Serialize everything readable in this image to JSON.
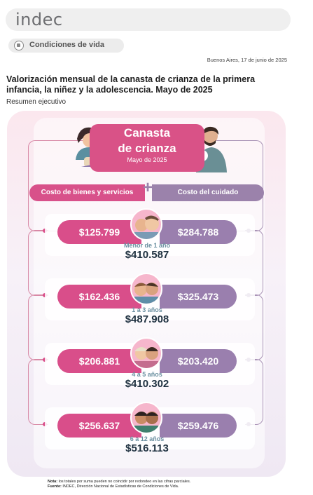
{
  "header": {
    "logo": "indec"
  },
  "section": {
    "label": "Condiciones de vida",
    "icon": "document-icon"
  },
  "date": "Buenos Aires, 17 de junio de 2025",
  "title": "Valorización mensual de la canasta de crianza de la primera infancia, la niñez y la adolescencia. Mayo de 2025",
  "subtitle": "Resumen ejecutivo",
  "infographic": {
    "heading_line1": "Canasta",
    "heading_line2": "de crianza",
    "period": "Mayo de 2025",
    "left_header": "Costo de bienes y servicios",
    "plus": "+",
    "right_header": "Costo del cuidado",
    "rows": [
      {
        "goods": "$125.799",
        "care": "$284.788",
        "age": "Menor de 1 año",
        "total": "$410.587"
      },
      {
        "goods": "$162.436",
        "care": "$325.473",
        "age": "1 a 3 años",
        "total": "$487.908"
      },
      {
        "goods": "$206.881",
        "care": "$203.420",
        "age": "4 a 5 años",
        "total": "$410.302"
      },
      {
        "goods": "$256.637",
        "care": "$259.476",
        "age": "6 a 12 años",
        "total": "$516.113"
      }
    ]
  },
  "note": {
    "label1": "Nota:",
    "text1": "los totales por suma pueden no coincidir por redondeo en las cifras parciales.",
    "label2": "Fuente:",
    "text2": "INDEC, Dirección Nacional de Estadísticas de Condiciones de Vida."
  },
  "colors": {
    "pink": "#d94e8a",
    "purple": "#9a7fae",
    "navy": "#1f3140"
  }
}
